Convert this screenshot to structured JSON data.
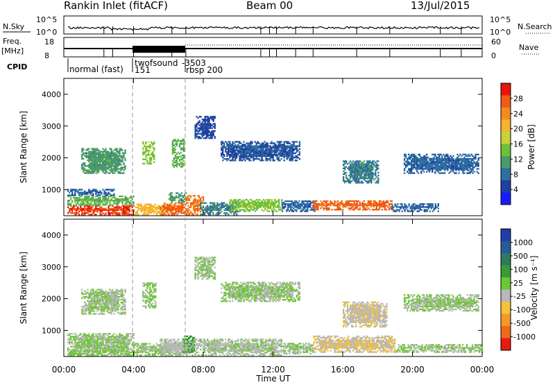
{
  "header": {
    "title": "Rankin Inlet (fitACF)",
    "beam": "Beam 00",
    "date": "13/Jul/2015"
  },
  "status_panels": {
    "nsky_label": "N.Sky",
    "nsearch_label": "N.Search",
    "freq_label_top": "Freq.",
    "freq_label_bottom": "[MHz]",
    "nave_label": "Nave",
    "cpid_label": "CPID",
    "nsky_ticks": [
      "10^5",
      "10^0"
    ],
    "nsearch_ticks": [
      "10^5",
      "10^0"
    ],
    "freq_ticks": [
      "18",
      "8"
    ],
    "nave_ticks": [
      "60",
      "0"
    ],
    "cpid_entries": [
      {
        "t": 0.17,
        "text": "normal (fast)",
        "line": "1"
      },
      {
        "t": 4.0,
        "text": "twofsound",
        "line": "1"
      },
      {
        "t": 4.0,
        "text": "151",
        "line": "2"
      },
      {
        "t": 6.9,
        "text": "-3503",
        "line": "1"
      },
      {
        "t": 7.0,
        "text": "rbsp 200",
        "line": "2"
      }
    ]
  },
  "axes": {
    "xlabel": "Time UT",
    "ylabel": "Slant Range [km]",
    "x_ticks": [
      "00:00",
      "04:00",
      "08:00",
      "12:00",
      "16:00",
      "20:00",
      "00:00"
    ],
    "y_ticks": [
      "1000",
      "2000",
      "3000",
      "4000"
    ]
  },
  "colorbars": {
    "power": {
      "label": "Power [dB]",
      "ticks": [
        "4",
        "8",
        "12",
        "16",
        "20",
        "24",
        "28"
      ],
      "colors": [
        "#1a1aff",
        "#203fa0",
        "#2e6ea0",
        "#4a9a6a",
        "#6cc03c",
        "#c8d23a",
        "#f5b52e",
        "#f28a1e",
        "#ef5a16",
        "#e8140e"
      ]
    },
    "velocity": {
      "label": "Velocity [m s⁻¹]",
      "ticks": [
        "1000",
        "500",
        "100",
        "25",
        "-25",
        "-100",
        "-500",
        "-1000"
      ],
      "colors": [
        "#1e3fa8",
        "#2a5a9a",
        "#2e7a5e",
        "#3a9a3a",
        "#6cc832",
        "#b8b8b8",
        "#f5c23a",
        "#f29a28",
        "#ef6a1a",
        "#e81a12"
      ]
    }
  },
  "chart_data": [
    {
      "type": "heatmap",
      "panel": "power",
      "xlabel": "Time UT",
      "ylabel": "Slant Range [km]",
      "xlim": [
        0,
        24
      ],
      "ylim": [
        180,
        4500
      ],
      "colorbar_label": "Power [dB]",
      "color_range": [
        0,
        30
      ],
      "blobs": [
        {
          "t0": 0.2,
          "t1": 4.0,
          "r0": 200,
          "r1": 500,
          "v": 28
        },
        {
          "t0": 0.2,
          "t1": 4.0,
          "r0": 500,
          "r1": 800,
          "v": 12
        },
        {
          "t0": 0.2,
          "t1": 3.0,
          "r0": 800,
          "r1": 1000,
          "v": 6
        },
        {
          "t0": 4.0,
          "t1": 6.4,
          "r0": 200,
          "r1": 550,
          "v": 20
        },
        {
          "t0": 5.5,
          "t1": 7.0,
          "r0": 200,
          "r1": 600,
          "v": 26
        },
        {
          "t0": 6.0,
          "t1": 7.0,
          "r0": 600,
          "r1": 900,
          "v": 10
        },
        {
          "t0": 7.0,
          "t1": 8.0,
          "r0": 200,
          "r1": 800,
          "v": 24
        },
        {
          "t0": 7.8,
          "t1": 10.0,
          "r0": 200,
          "r1": 600,
          "v": 8
        },
        {
          "t0": 9.5,
          "t1": 12.5,
          "r0": 300,
          "r1": 700,
          "v": 14
        },
        {
          "t0": 12.5,
          "t1": 14.5,
          "r0": 300,
          "r1": 650,
          "v": 6
        },
        {
          "t0": 14.3,
          "t1": 18.8,
          "r0": 350,
          "r1": 650,
          "v": 26
        },
        {
          "t0": 18.8,
          "t1": 21.5,
          "r0": 300,
          "r1": 550,
          "v": 6
        },
        {
          "t0": 1.0,
          "t1": 3.5,
          "r0": 1500,
          "r1": 2300,
          "v": 10
        },
        {
          "t0": 4.5,
          "t1": 5.2,
          "r0": 1800,
          "r1": 2500,
          "v": 14
        },
        {
          "t0": 6.2,
          "t1": 6.9,
          "r0": 1700,
          "r1": 2600,
          "v": 12
        },
        {
          "t0": 16.0,
          "t1": 18.0,
          "r0": 1200,
          "r1": 1900,
          "v": 8
        },
        {
          "t0": 19.5,
          "t1": 23.8,
          "r0": 1500,
          "r1": 2100,
          "v": 6
        },
        {
          "t0": 9.0,
          "t1": 13.5,
          "r0": 1900,
          "r1": 2500,
          "v": 5
        },
        {
          "t0": 7.5,
          "t1": 8.7,
          "r0": 2600,
          "r1": 3300,
          "v": 4
        }
      ]
    },
    {
      "type": "heatmap",
      "panel": "velocity",
      "xlabel": "Time UT",
      "ylabel": "Slant Range [km]",
      "xlim": [
        0,
        24
      ],
      "ylim": [
        180,
        4500
      ],
      "colorbar_label": "Velocity [m s⁻¹]",
      "color_range": [
        -1000,
        1000
      ],
      "blobs": [
        {
          "t0": 0.2,
          "t1": 4.0,
          "r0": 200,
          "r1": 900,
          "v": 0
        },
        {
          "t0": 0.3,
          "t1": 4.0,
          "r0": 200,
          "r1": 350,
          "v": 60
        },
        {
          "t0": 4.0,
          "t1": 6.5,
          "r0": 200,
          "r1": 600,
          "v": 0
        },
        {
          "t0": 5.5,
          "t1": 7.8,
          "r0": 200,
          "r1": 700,
          "v": -100
        },
        {
          "t0": 6.8,
          "t1": 7.5,
          "r0": 300,
          "r1": 800,
          "v": 300
        },
        {
          "t0": 7.8,
          "t1": 12.5,
          "r0": 200,
          "r1": 700,
          "v": -60
        },
        {
          "t0": 12.5,
          "t1": 14.3,
          "r0": 250,
          "r1": 600,
          "v": 0
        },
        {
          "t0": 14.3,
          "t1": 19.0,
          "r0": 300,
          "r1": 800,
          "v": -200
        },
        {
          "t0": 19.0,
          "t1": 24.0,
          "r0": 300,
          "r1": 550,
          "v": 0
        },
        {
          "t0": 1.0,
          "t1": 3.5,
          "r0": 1500,
          "r1": 2300,
          "v": 0
        },
        {
          "t0": 4.5,
          "t1": 5.3,
          "r0": 1700,
          "r1": 2500,
          "v": 40
        },
        {
          "t0": 16.0,
          "t1": 18.5,
          "r0": 1100,
          "r1": 1900,
          "v": -180
        },
        {
          "t0": 19.5,
          "t1": 23.8,
          "r0": 1600,
          "r1": 2100,
          "v": 0
        },
        {
          "t0": 9.0,
          "t1": 13.5,
          "r0": 1900,
          "r1": 2500,
          "v": 0
        },
        {
          "t0": 7.5,
          "t1": 8.7,
          "r0": 2600,
          "r1": 3300,
          "v": 0
        }
      ]
    }
  ]
}
